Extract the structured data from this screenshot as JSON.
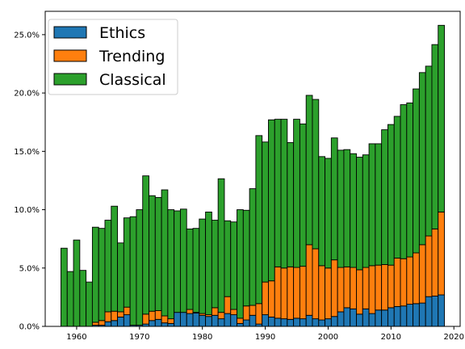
{
  "chart_data": {
    "type": "bar",
    "stacked": true,
    "title": "",
    "xlabel": "",
    "ylabel": "",
    "xlim": [
      1955,
      2021
    ],
    "ylim": [
      0,
      0.27
    ],
    "x_ticks": [
      1960,
      1970,
      1980,
      1990,
      2000,
      2010,
      2020
    ],
    "y_ticks": [
      0,
      0.05,
      0.1,
      0.15,
      0.2,
      0.25
    ],
    "y_tick_labels": [
      "0.0%",
      "5.0%",
      "10.0%",
      "15.0%",
      "20.0%",
      "25.0%"
    ],
    "grid": false,
    "legend_position": "top-left",
    "categories": [
      1958,
      1959,
      1960,
      1961,
      1962,
      1963,
      1964,
      1965,
      1966,
      1967,
      1968,
      1969,
      1970,
      1971,
      1972,
      1973,
      1974,
      1975,
      1976,
      1977,
      1978,
      1979,
      1980,
      1981,
      1982,
      1983,
      1984,
      1985,
      1986,
      1987,
      1988,
      1989,
      1990,
      1991,
      1992,
      1993,
      1994,
      1995,
      1996,
      1997,
      1998,
      1999,
      2000,
      2001,
      2002,
      2003,
      2004,
      2005,
      2006,
      2007,
      2008,
      2009,
      2010,
      2011,
      2012,
      2013,
      2014,
      2015,
      2016,
      2017,
      2018
    ],
    "series": [
      {
        "name": "Ethics",
        "color": "#1f77b4",
        "values": [
          0.0,
          0.0,
          0.0,
          0.0,
          0.0,
          0.001,
          0.001,
          0.004,
          0.005,
          0.008,
          0.01,
          0.001,
          0.001,
          0.002,
          0.005,
          0.006,
          0.003,
          0.0025,
          0.012,
          0.012,
          0.011,
          0.0115,
          0.0095,
          0.0085,
          0.0095,
          0.0065,
          0.011,
          0.01,
          0.0025,
          0.0055,
          0.0095,
          0.002,
          0.01,
          0.008,
          0.007,
          0.0065,
          0.006,
          0.007,
          0.0065,
          0.0095,
          0.0065,
          0.0055,
          0.0065,
          0.0085,
          0.0125,
          0.016,
          0.015,
          0.0105,
          0.015,
          0.011,
          0.014,
          0.014,
          0.016,
          0.017,
          0.0175,
          0.019,
          0.0195,
          0.02,
          0.0255,
          0.026,
          0.027
        ]
      },
      {
        "name": "Trending",
        "color": "#ff7f0e",
        "values": [
          0.0,
          0.0,
          0.0,
          0.0,
          0.0,
          0.0025,
          0.004,
          0.0085,
          0.008,
          0.0045,
          0.0065,
          0.0,
          0.0,
          0.0085,
          0.008,
          0.0075,
          0.006,
          0.004,
          0.0,
          0.0,
          0.0035,
          0.0005,
          0.0015,
          0.0015,
          0.0065,
          0.0055,
          0.0145,
          0.0045,
          0.0045,
          0.012,
          0.0085,
          0.0175,
          0.028,
          0.031,
          0.044,
          0.0435,
          0.045,
          0.0435,
          0.045,
          0.0605,
          0.06,
          0.0465,
          0.0435,
          0.0485,
          0.038,
          0.035,
          0.0355,
          0.038,
          0.0355,
          0.041,
          0.0385,
          0.039,
          0.0365,
          0.0415,
          0.0405,
          0.0405,
          0.0435,
          0.05,
          0.052,
          0.0575,
          0.071
        ]
      },
      {
        "name": "Classical",
        "color": "#2ca02c",
        "values": [
          0.067,
          0.047,
          0.074,
          0.048,
          0.038,
          0.0815,
          0.079,
          0.0785,
          0.09,
          0.059,
          0.0765,
          0.093,
          0.099,
          0.1185,
          0.099,
          0.097,
          0.108,
          0.0935,
          0.087,
          0.0885,
          0.069,
          0.072,
          0.081,
          0.088,
          0.075,
          0.1145,
          0.065,
          0.075,
          0.093,
          0.082,
          0.1,
          0.144,
          0.12,
          0.138,
          0.1265,
          0.1275,
          0.1065,
          0.127,
          0.122,
          0.128,
          0.128,
          0.0935,
          0.094,
          0.1045,
          0.1005,
          0.1005,
          0.0975,
          0.0965,
          0.0965,
          0.1045,
          0.104,
          0.1155,
          0.1205,
          0.1215,
          0.132,
          0.132,
          0.1405,
          0.1475,
          0.1455,
          0.158,
          0.16
        ]
      }
    ]
  }
}
